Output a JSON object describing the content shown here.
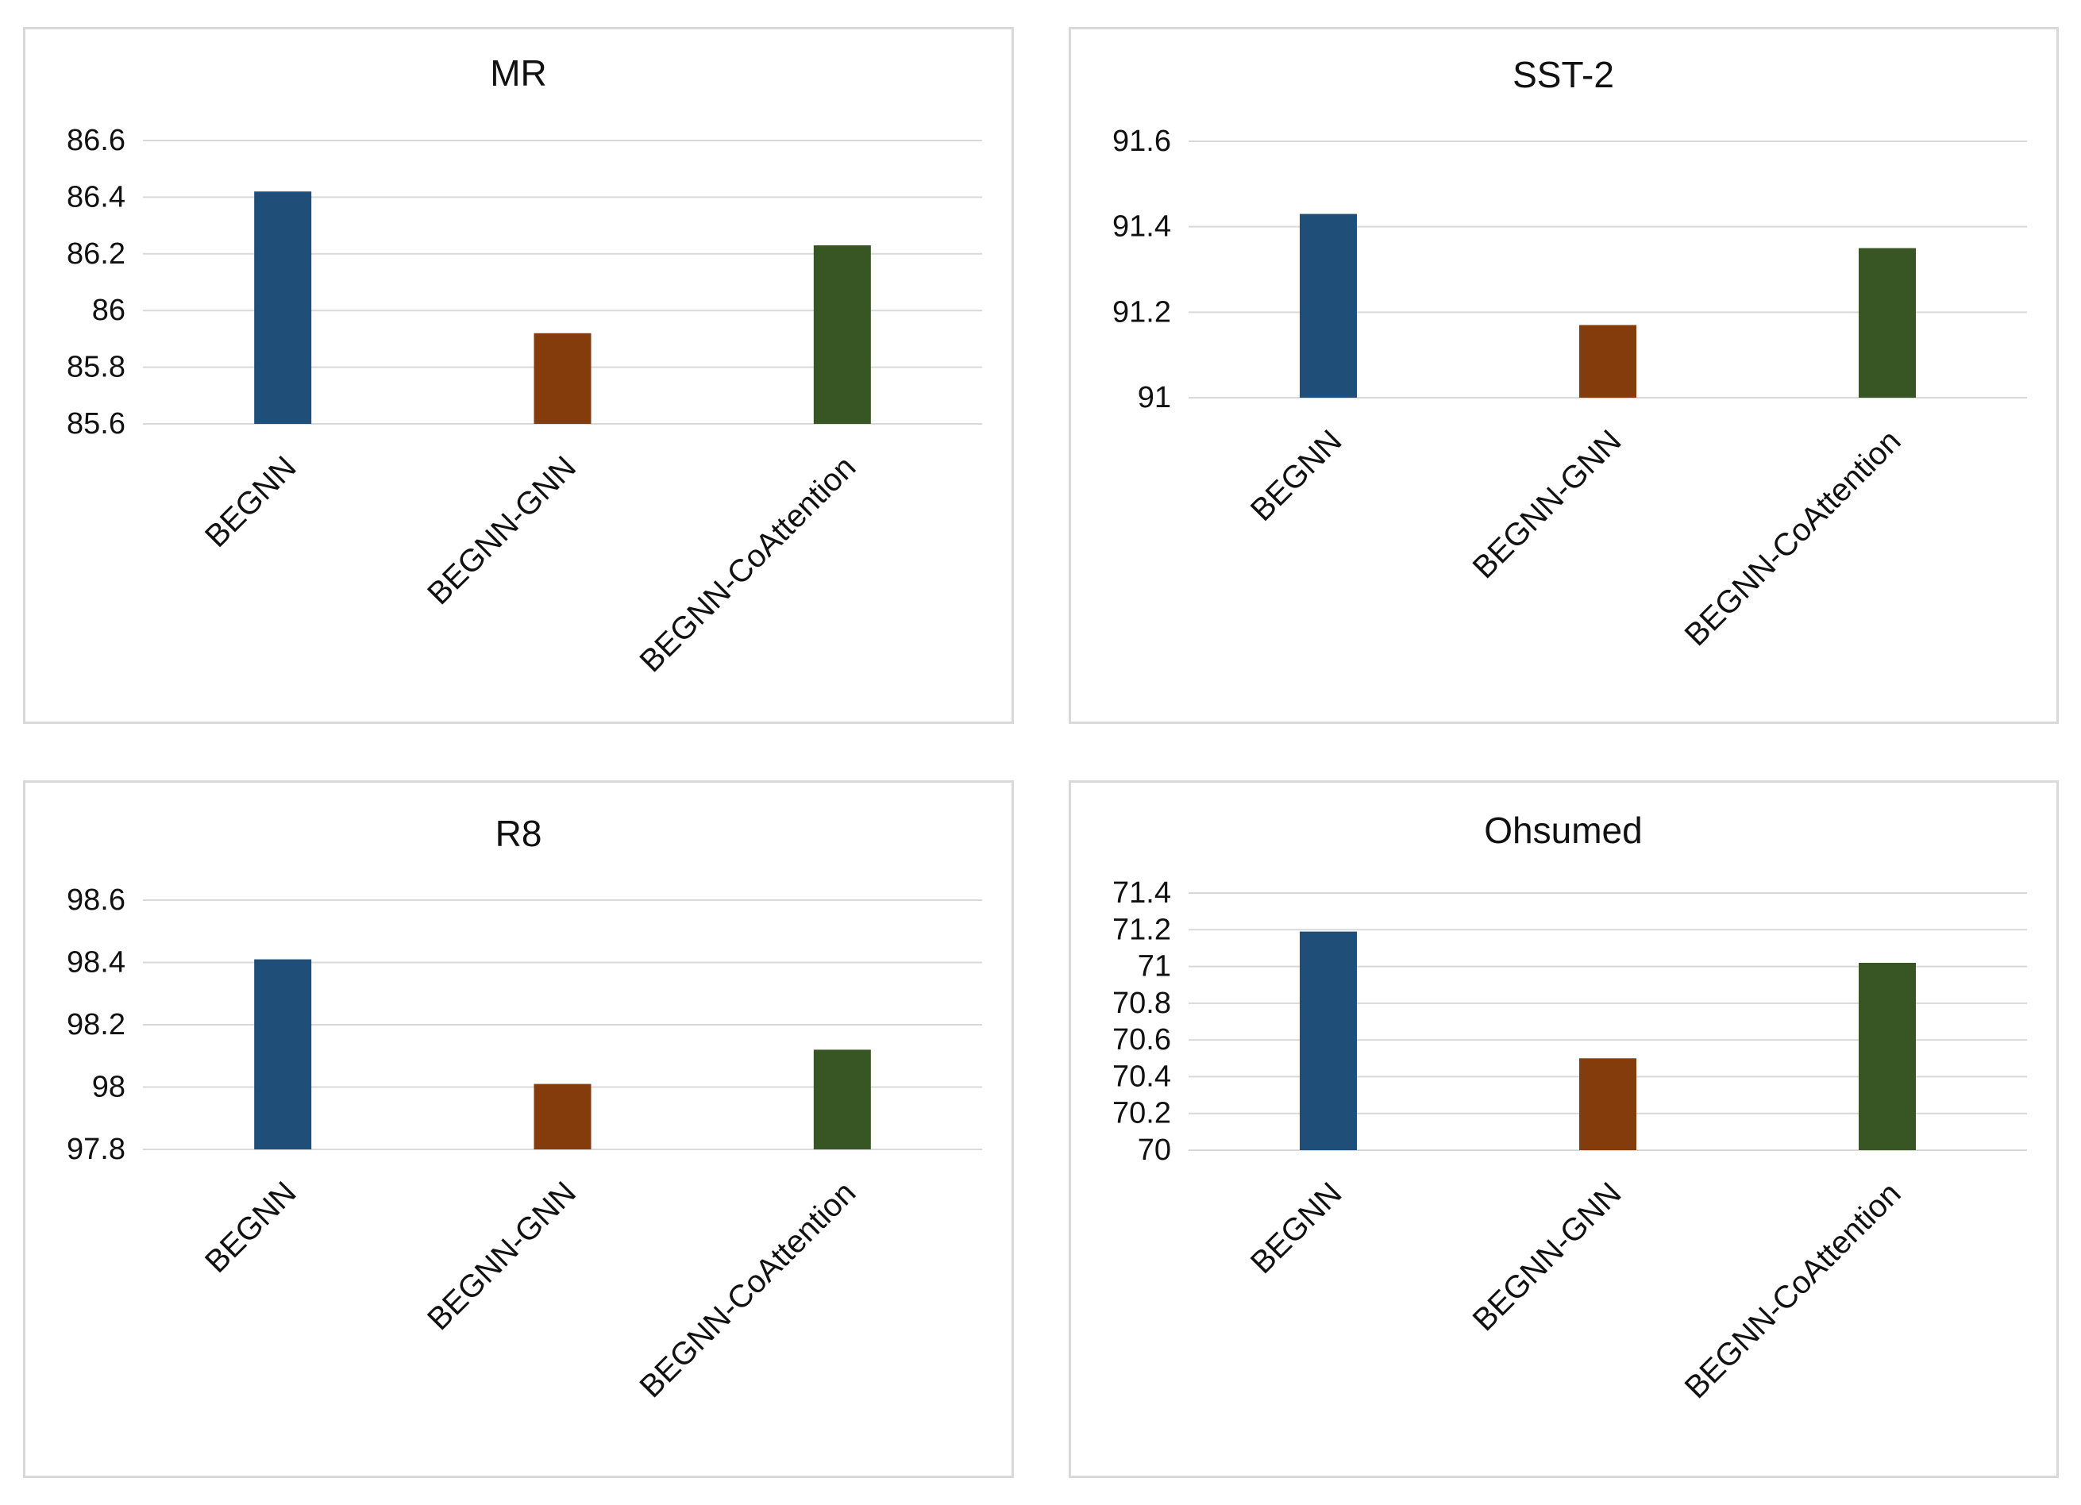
{
  "chart_data": [
    {
      "type": "bar",
      "title": "MR",
      "categories": [
        "BEGNN",
        "BEGNN-GNN",
        "BEGNN-CoAttention"
      ],
      "values": [
        86.42,
        85.92,
        86.23
      ],
      "ylim": [
        85.6,
        86.6
      ],
      "yticks": [
        "85.6",
        "85.8",
        "86",
        "86.2",
        "86.4",
        "86.6"
      ],
      "xlabel": "",
      "ylabel": "",
      "grid": true,
      "legend": "none"
    },
    {
      "type": "bar",
      "title": "SST-2",
      "categories": [
        "BEGNN",
        "BEGNN-GNN",
        "BEGNN-CoAttention"
      ],
      "values": [
        91.43,
        91.17,
        91.35
      ],
      "ylim": [
        91.0,
        91.6
      ],
      "yticks": [
        "91",
        "91.2",
        "91.4",
        "91.6"
      ],
      "xlabel": "",
      "ylabel": "",
      "grid": true,
      "legend": "none"
    },
    {
      "type": "bar",
      "title": "R8",
      "categories": [
        "BEGNN",
        "BEGNN-GNN",
        "BEGNN-CoAttention"
      ],
      "values": [
        98.41,
        98.01,
        98.12
      ],
      "ylim": [
        97.8,
        98.6
      ],
      "yticks": [
        "97.8",
        "98",
        "98.2",
        "98.4",
        "98.6"
      ],
      "xlabel": "",
      "ylabel": "",
      "grid": true,
      "legend": "none"
    },
    {
      "type": "bar",
      "title": "Ohsumed",
      "categories": [
        "BEGNN",
        "BEGNN-GNN",
        "BEGNN-CoAttention"
      ],
      "values": [
        71.19,
        70.5,
        71.02
      ],
      "ylim": [
        70.0,
        71.4
      ],
      "yticks": [
        "70",
        "70.2",
        "70.4",
        "70.6",
        "70.8",
        "71",
        "71.2",
        "71.4"
      ],
      "xlabel": "",
      "ylabel": "",
      "grid": true,
      "legend": "none"
    }
  ],
  "colors": [
    "#1f4e79",
    "#843c0c",
    "#375623"
  ]
}
